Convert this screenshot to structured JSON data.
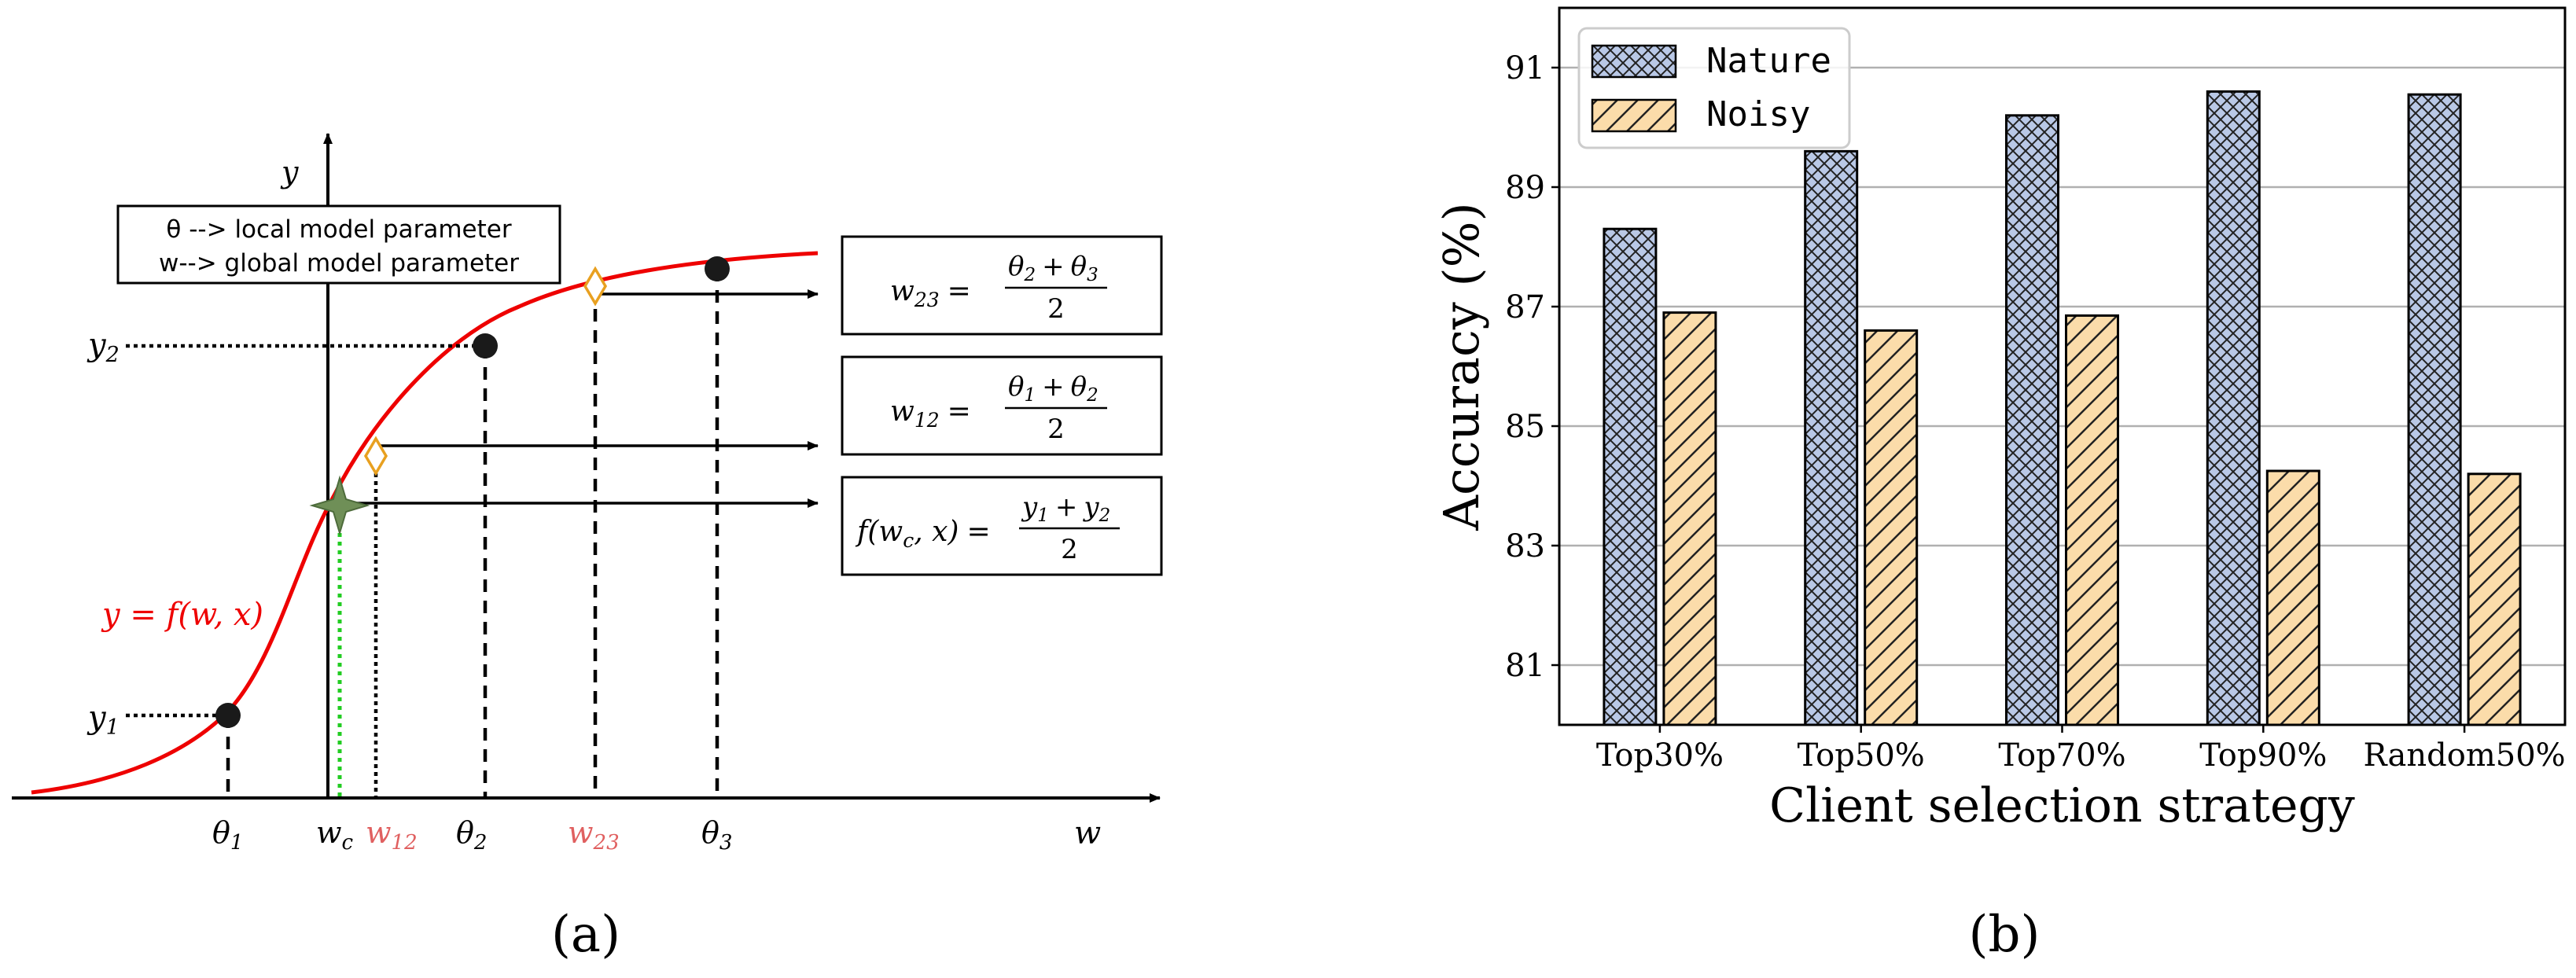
{
  "colors": {
    "curve": "#ee0000",
    "marker_red_label": "#e06060",
    "green_marker": "#6f8f57",
    "green_dotted": "#22cc22",
    "diamond": "#e8a020",
    "nature_fill": "#b9c8e6",
    "noisy_fill": "#fbdcaa",
    "grid": "#b0b0b0"
  },
  "panel_a": {
    "caption": "(a)",
    "axis_y_label": "y",
    "axis_x_label": "w",
    "legend_line1": "θ --> local model parameter",
    "legend_line2": "w--> global model parameter",
    "curve_label": "y = f(w, x)",
    "y_labels": {
      "y1": "y",
      "y1_sub": "1",
      "y2": "y",
      "y2_sub": "2"
    },
    "x_labels": {
      "theta1": "θ",
      "theta1_sub": "1",
      "wc": "w",
      "wc_sub": "c",
      "w12": "w",
      "w12_sub": "12",
      "theta2": "θ",
      "theta2_sub": "2",
      "w23": "w",
      "w23_sub": "23",
      "theta3": "θ",
      "theta3_sub": "3"
    },
    "box_w23": {
      "lhs": "w",
      "lhs_sub": "23",
      "eq": "=",
      "num_a": "θ",
      "num_a_sub": "2",
      "plus": "+",
      "num_b": "θ",
      "num_b_sub": "3",
      "den": "2"
    },
    "box_w12": {
      "lhs": "w",
      "lhs_sub": "12",
      "eq": "=",
      "num_a": "θ",
      "num_a_sub": "1",
      "plus": "+",
      "num_b": "θ",
      "num_b_sub": "2",
      "den": "2"
    },
    "box_f": {
      "lhs": "f(w",
      "lhs_sub": "c",
      "lhs_tail": ", x)",
      "eq": "=",
      "num_a": "y",
      "num_a_sub": "1",
      "plus": "+",
      "num_b": "y",
      "num_b_sub": "2",
      "den": "2"
    }
  },
  "chart_data": {
    "type": "bar",
    "caption": "(b)",
    "title": "",
    "xlabel": "Client selection strategy",
    "ylabel": "Accuracy (%)",
    "categories": [
      "Top30%",
      "Top50%",
      "Top70%",
      "Top90%",
      "Random50%"
    ],
    "series": [
      {
        "name": "Nature",
        "values": [
          88.3,
          89.6,
          90.2,
          90.6,
          90.55
        ]
      },
      {
        "name": "Noisy",
        "values": [
          86.9,
          86.6,
          86.85,
          84.25,
          84.2
        ]
      }
    ],
    "ylim": [
      80,
      92
    ],
    "yticks": [
      "81",
      "83",
      "85",
      "87",
      "89",
      "91"
    ],
    "grid": "horizontal",
    "legend_position": "top-left"
  }
}
